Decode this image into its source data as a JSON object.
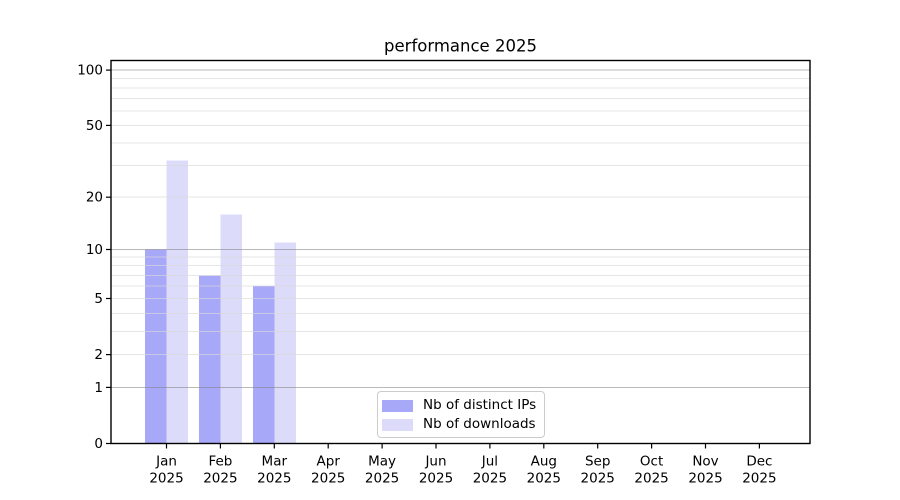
{
  "title": "performance 2025",
  "chart_data": {
    "type": "bar",
    "title": "performance 2025",
    "categories": [
      "Jan",
      "Feb",
      "Mar",
      "Apr",
      "May",
      "Jun",
      "Jul",
      "Aug",
      "Sep",
      "Oct",
      "Nov",
      "Dec"
    ],
    "x_year_suffix": "2025",
    "series": [
      {
        "name": "Nb of distinct IPs",
        "color": "#a8a8f8",
        "values": [
          10,
          7,
          6,
          0,
          0,
          0,
          0,
          0,
          0,
          0,
          0,
          0
        ]
      },
      {
        "name": "Nb of downloads",
        "color": "#dcdcfa",
        "values": [
          32,
          16,
          11,
          0,
          0,
          0,
          0,
          0,
          0,
          0,
          0,
          0
        ]
      }
    ],
    "yscale": "log1p",
    "ylim": [
      0,
      112
    ],
    "yticks": [
      0,
      1,
      2,
      5,
      10,
      20,
      50,
      100
    ],
    "grid": {
      "major_values": [
        1,
        10,
        100
      ],
      "minor_values": [
        2,
        3,
        4,
        5,
        6,
        7,
        8,
        9,
        20,
        30,
        40,
        50,
        60,
        70,
        80,
        90
      ]
    },
    "legend": {
      "position": "lower center",
      "entries": [
        "Nb of distinct IPs",
        "Nb of downloads"
      ]
    }
  },
  "colors": {
    "bar_distinct_ips": "#a8a8f8",
    "bar_downloads": "#dcdcfa",
    "grid_major": "#b7b7b7",
    "grid_minor": "#e8e8e8",
    "axis": "#000000",
    "background": "#ffffff"
  }
}
